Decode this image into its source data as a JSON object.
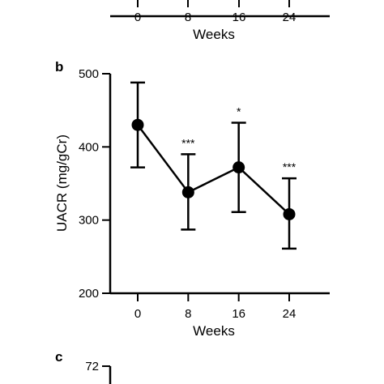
{
  "colors": {
    "ink": "#000000",
    "background": "#ffffff"
  },
  "panel_a": {
    "xlabel": "Weeks",
    "x_ticks": [
      "0",
      "8",
      "16",
      "24"
    ]
  },
  "panel_b": {
    "label": "b"
  },
  "panel_c": {
    "label": "c",
    "y_top_tick": "72"
  },
  "chart_data": {
    "type": "line",
    "xlabel": "Weeks",
    "ylabel": "UACR (mg/gCr)",
    "ylim": [
      200,
      500
    ],
    "y_ticks": [
      200,
      300,
      400,
      500
    ],
    "x_ticks": [
      0,
      8,
      16,
      24
    ],
    "grid": false,
    "series": [
      {
        "x": [
          0,
          8,
          16,
          24
        ],
        "y": [
          430,
          338,
          372,
          308
        ],
        "error_upper": [
          488,
          390,
          433,
          357
        ],
        "error_lower": [
          372,
          287,
          311,
          261
        ],
        "significance": [
          "",
          "***",
          "*",
          "***"
        ]
      }
    ]
  }
}
